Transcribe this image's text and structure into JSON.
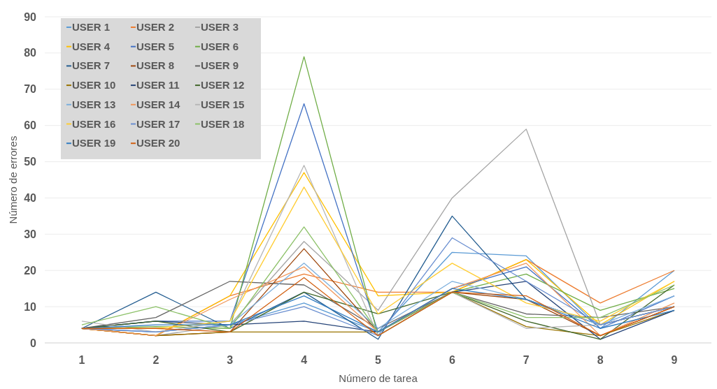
{
  "chart_data": {
    "type": "line",
    "xlabel": "Número de tarea",
    "ylabel": "Número de errores",
    "categories": [
      "1",
      "2",
      "3",
      "4",
      "5",
      "6",
      "7",
      "8",
      "9"
    ],
    "ylim": [
      0,
      90
    ],
    "yticks": [
      0,
      10,
      20,
      30,
      40,
      50,
      60,
      70,
      80,
      90
    ],
    "grid": "y",
    "legend": "top left",
    "marker": "none",
    "line_style": "solid",
    "series": [
      {
        "name": "USER 1",
        "color": "#5b9bd5",
        "values": [
          4,
          3,
          5,
          11,
          3,
          25,
          24,
          4,
          20
        ]
      },
      {
        "name": "USER 2",
        "color": "#ed7d31",
        "values": [
          4,
          2,
          13,
          19,
          14,
          14,
          23,
          11,
          20
        ]
      },
      {
        "name": "USER 3",
        "color": "#a5a5a5",
        "values": [
          4,
          2,
          5,
          28,
          9,
          40,
          59,
          5,
          10
        ]
      },
      {
        "name": "USER 4",
        "color": "#ffc000",
        "values": [
          4,
          2,
          13,
          47,
          13,
          14,
          23,
          5,
          17
        ]
      },
      {
        "name": "USER 5",
        "color": "#4472c4",
        "values": [
          4,
          6,
          6,
          66,
          3,
          15,
          21,
          4,
          13
        ]
      },
      {
        "name": "USER 6",
        "color": "#70ad47",
        "values": [
          4,
          4.5,
          4,
          79,
          2,
          14,
          19,
          9,
          15
        ]
      },
      {
        "name": "USER 7",
        "color": "#255e91",
        "values": [
          4,
          14,
          4,
          14,
          1,
          35,
          12,
          5,
          10
        ]
      },
      {
        "name": "USER 8",
        "color": "#9e480e",
        "values": [
          4,
          2,
          3,
          26,
          3,
          14,
          12,
          2,
          10
        ]
      },
      {
        "name": "USER 9",
        "color": "#636363",
        "values": [
          4,
          7,
          17,
          16,
          4,
          14,
          8,
          7,
          10
        ]
      },
      {
        "name": "USER 10",
        "color": "#997300",
        "values": [
          4,
          2,
          3,
          3,
          3,
          14,
          4.5,
          2,
          9
        ]
      },
      {
        "name": "USER 11",
        "color": "#264478",
        "values": [
          4,
          6,
          5,
          6,
          3,
          14,
          17,
          1,
          9
        ]
      },
      {
        "name": "USER 12",
        "color": "#43682b",
        "values": [
          4,
          6,
          3,
          14,
          8,
          14,
          6,
          1,
          16
        ]
      },
      {
        "name": "USER 13",
        "color": "#7cafdd",
        "values": [
          4,
          3,
          5,
          22,
          4,
          17,
          12,
          5,
          13
        ]
      },
      {
        "name": "USER 14",
        "color": "#f1975a",
        "values": [
          4,
          2,
          12,
          21,
          3,
          15,
          22,
          2,
          11
        ]
      },
      {
        "name": "USER 15",
        "color": "#b7b7b7",
        "values": [
          6,
          3,
          6,
          49,
          2,
          14,
          4,
          5,
          10
        ]
      },
      {
        "name": "USER 16",
        "color": "#ffcd33",
        "values": [
          4,
          4,
          6,
          43,
          8,
          22,
          11,
          6,
          17
        ]
      },
      {
        "name": "USER 17",
        "color": "#698ed0",
        "values": [
          4,
          3,
          5,
          10,
          2,
          29,
          17,
          5,
          10
        ]
      },
      {
        "name": "USER 18",
        "color": "#8cc168",
        "values": [
          5,
          10,
          4,
          32,
          3,
          14,
          7,
          7,
          16
        ]
      },
      {
        "name": "USER 19",
        "color": "#327dc2",
        "values": [
          4,
          5,
          5,
          13,
          3,
          15,
          12,
          4,
          9
        ]
      },
      {
        "name": "USER 20",
        "color": "#d26012",
        "values": [
          4,
          4,
          3,
          18,
          2,
          14,
          13,
          2,
          10
        ]
      }
    ]
  }
}
